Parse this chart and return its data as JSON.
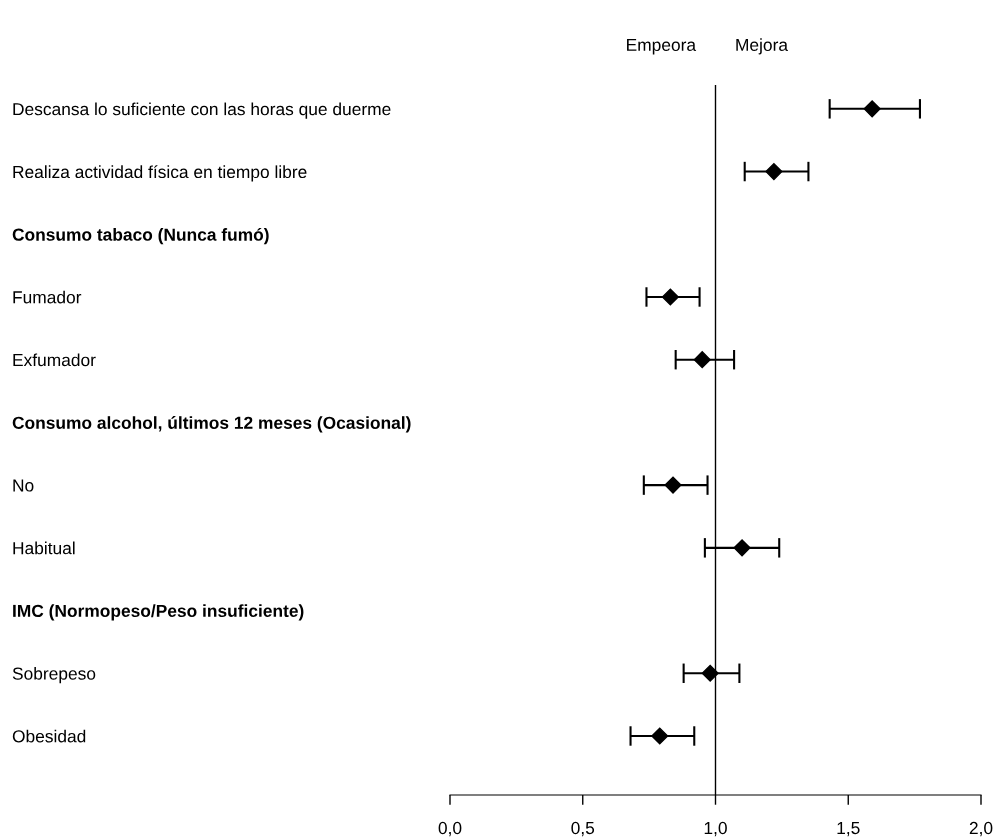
{
  "chart_data": {
    "type": "scatter",
    "orientation": "horizontal",
    "marker": "diamond",
    "grid": false,
    "categories": [
      "Descansa lo suficiente con las horas que duerme",
      "Realiza actividad física en tiempo libre",
      "Consumo tabaco (Nunca fumó)",
      "Fumador",
      "Exfumador",
      "Consumo alcohol, últimos 12 meses (Ocasional)",
      "No",
      "Habitual",
      "IMC (Normopeso/Peso insuficiente)",
      "Sobrepeso",
      "Obesidad"
    ],
    "values": [
      1.59,
      1.22,
      null,
      0.83,
      0.95,
      null,
      0.84,
      1.1,
      null,
      0.98,
      0.79
    ],
    "errors": [
      [
        1.43,
        1.77
      ],
      [
        1.11,
        1.35
      ],
      null,
      [
        0.74,
        0.94
      ],
      [
        0.85,
        1.07
      ],
      null,
      [
        0.73,
        0.97
      ],
      [
        0.96,
        1.24
      ],
      null,
      [
        0.88,
        1.09
      ],
      [
        0.68,
        0.92
      ]
    ],
    "color": "#000000",
    "xlim": [
      0,
      2
    ],
    "xticks": [
      {
        "value": 0,
        "label": "0,0"
      },
      {
        "value": 0.5,
        "label": "0,5"
      },
      {
        "value": 1,
        "label": "1,0"
      },
      {
        "value": 1.5,
        "label": "1,5"
      },
      {
        "value": 2,
        "label": "2,0"
      }
    ],
    "ref_lines": [
      {
        "axis": "x",
        "value": 1,
        "color": "#000000"
      }
    ],
    "annotations": [
      "Empeora",
      "Mejora"
    ]
  }
}
